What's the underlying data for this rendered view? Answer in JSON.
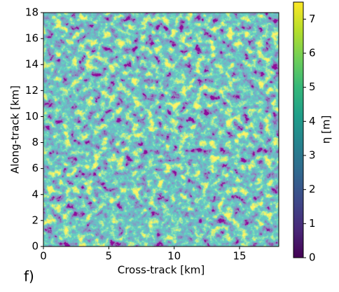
{
  "chart_data": {
    "type": "heatmap",
    "panel_label": "f)",
    "xlabel": "Cross-track [km]",
    "ylabel": "Along-track [km]",
    "xlim": [
      0,
      18
    ],
    "xticks": [
      0,
      5,
      10,
      15
    ],
    "ylim": [
      0,
      18
    ],
    "yticks": [
      0,
      2,
      4,
      6,
      8,
      10,
      12,
      14,
      16,
      18
    ],
    "colorbar": {
      "label": "η [m]",
      "lim": [
        0,
        7.5
      ],
      "ticks": [
        0,
        1,
        2,
        3,
        4,
        5,
        6,
        7
      ]
    },
    "colormap": [
      "#440154",
      "#482878",
      "#3e4989",
      "#31688e",
      "#26828e",
      "#1f9e89",
      "#35b779",
      "#6ece58",
      "#b5de2b",
      "#fde725"
    ]
  }
}
